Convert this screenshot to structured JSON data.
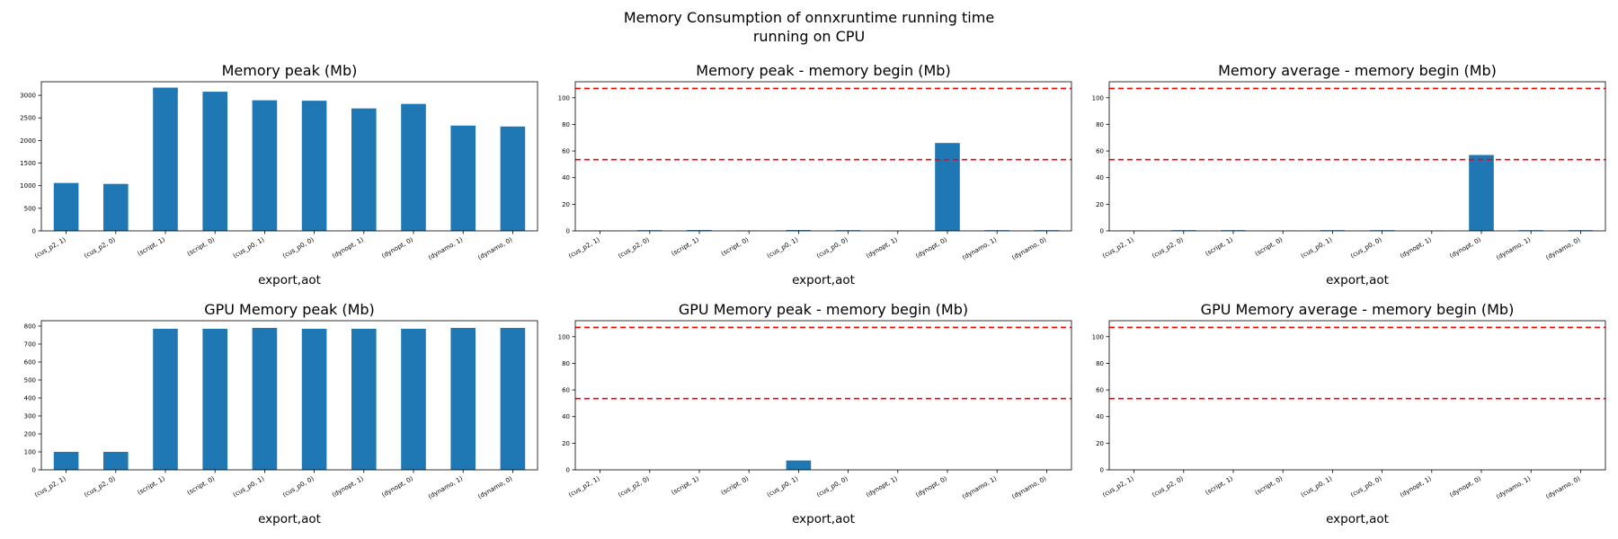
{
  "suptitle": [
    "Memory Consumption of onnxruntime running time",
    "running on CPU"
  ],
  "chart_data": [
    {
      "type": "bar",
      "title": "Memory peak (Mb)",
      "xlabel": "export,aot",
      "ylabel": "",
      "categories": [
        "(cus_p2, 1)",
        "(cus_p2, 0)",
        "(script, 1)",
        "(script, 0)",
        "(cus_p0, 1)",
        "(cus_p0, 0)",
        "(dynopt, 1)",
        "(dynopt, 0)",
        "(dynamo, 1)",
        "(dynamo, 0)"
      ],
      "values": [
        1060,
        1040,
        3170,
        3080,
        2890,
        2880,
        2710,
        2810,
        2330,
        2310
      ],
      "ylim": [
        0,
        3300
      ],
      "yticks": [
        0,
        500,
        1000,
        1500,
        2000,
        2500,
        3000
      ],
      "hlines": [],
      "bar_color": "#1f77b4",
      "grid": false
    },
    {
      "type": "bar",
      "title": "Memory peak - memory begin (Mb)",
      "xlabel": "export,aot",
      "ylabel": "",
      "categories": [
        "(cus_p2, 1)",
        "(cus_p2, 0)",
        "(script, 1)",
        "(script, 0)",
        "(cus_p0, 1)",
        "(cus_p0, 0)",
        "(dynopt, 1)",
        "(dynopt, 0)",
        "(dynamo, 1)",
        "(dynamo, 0)"
      ],
      "values": [
        0.1,
        0.5,
        0.6,
        0.2,
        0.6,
        0.5,
        0.1,
        66.0,
        0.5,
        0.5
      ],
      "ylim": [
        0,
        112
      ],
      "yticks": [
        0,
        20,
        40,
        60,
        80,
        100
      ],
      "hlines": [
        53.5,
        107
      ],
      "hline_color": "#ff0000",
      "bar_color": "#1f77b4",
      "grid": false
    },
    {
      "type": "bar",
      "title": "Memory average - memory begin (Mb)",
      "xlabel": "export,aot",
      "ylabel": "",
      "categories": [
        "(cus_p2, 1)",
        "(cus_p2, 0)",
        "(script, 1)",
        "(script, 0)",
        "(cus_p0, 1)",
        "(cus_p0, 0)",
        "(dynopt, 1)",
        "(dynopt, 0)",
        "(dynamo, 1)",
        "(dynamo, 0)"
      ],
      "values": [
        0.1,
        0.5,
        0.5,
        0.1,
        0.5,
        0.5,
        0.1,
        57.0,
        0.5,
        0.5
      ],
      "ylim": [
        0,
        112
      ],
      "yticks": [
        0,
        20,
        40,
        60,
        80,
        100
      ],
      "hlines": [
        53.5,
        107
      ],
      "hline_color": "#ff0000",
      "bar_color": "#1f77b4",
      "grid": false
    },
    {
      "type": "bar",
      "title": "GPU Memory peak (Mb)",
      "xlabel": "export,aot",
      "ylabel": "",
      "categories": [
        "(cus_p2, 1)",
        "(cus_p2, 0)",
        "(script, 1)",
        "(script, 0)",
        "(cus_p0, 1)",
        "(cus_p0, 0)",
        "(dynopt, 1)",
        "(dynopt, 0)",
        "(dynamo, 1)",
        "(dynamo, 0)"
      ],
      "values": [
        100,
        100,
        785,
        785,
        790,
        785,
        785,
        785,
        790,
        790
      ],
      "ylim": [
        0,
        830
      ],
      "yticks": [
        0,
        100,
        200,
        300,
        400,
        500,
        600,
        700,
        800
      ],
      "hlines": [],
      "bar_color": "#1f77b4",
      "grid": false
    },
    {
      "type": "bar",
      "title": "GPU Memory peak - memory begin (Mb)",
      "xlabel": "export,aot",
      "ylabel": "",
      "categories": [
        "(cus_p2, 1)",
        "(cus_p2, 0)",
        "(script, 1)",
        "(script, 0)",
        "(cus_p0, 1)",
        "(cus_p0, 0)",
        "(dynopt, 1)",
        "(dynopt, 0)",
        "(dynamo, 1)",
        "(dynamo, 0)"
      ],
      "values": [
        0,
        0,
        0,
        0,
        7.0,
        0,
        0,
        0,
        0,
        0
      ],
      "ylim": [
        0,
        112
      ],
      "yticks": [
        0,
        20,
        40,
        60,
        80,
        100
      ],
      "hlines": [
        53.5,
        107
      ],
      "hline_color": "#ff0000",
      "bar_color": "#1f77b4",
      "grid": false
    },
    {
      "type": "bar",
      "title": "GPU Memory average - memory begin (Mb)",
      "xlabel": "export,aot",
      "ylabel": "",
      "categories": [
        "(cus_p2, 1)",
        "(cus_p2, 0)",
        "(script, 1)",
        "(script, 0)",
        "(cus_p0, 1)",
        "(cus_p0, 0)",
        "(dynopt, 1)",
        "(dynopt, 0)",
        "(dynamo, 1)",
        "(dynamo, 0)"
      ],
      "values": [
        0,
        0,
        0,
        0,
        0,
        0,
        0,
        0,
        0,
        0
      ],
      "ylim": [
        0,
        112
      ],
      "yticks": [
        0,
        20,
        40,
        60,
        80,
        100
      ],
      "hlines": [
        53.5,
        107
      ],
      "hline_color": "#ff0000",
      "bar_color": "#1f77b4",
      "grid": false
    }
  ]
}
